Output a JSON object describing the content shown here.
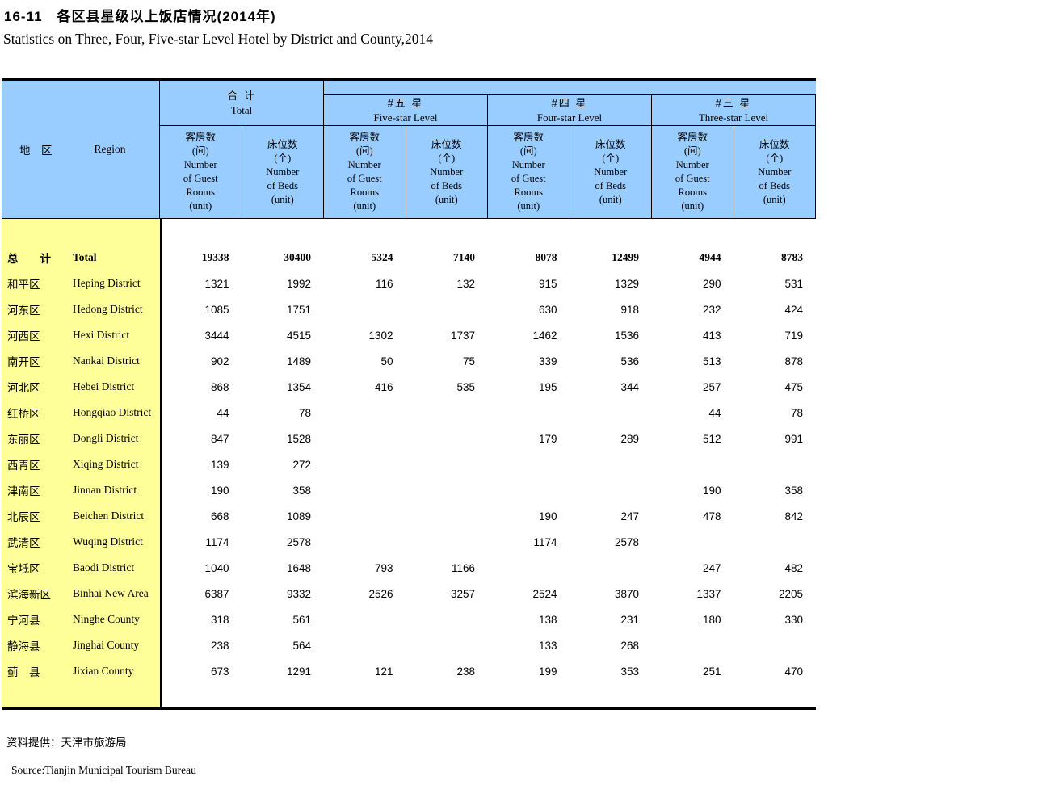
{
  "title": {
    "cn": "16-11　各区县星级以上饭店情况(2014年)",
    "en": "Statistics on Three, Four, Five-star Level Hotel by District and County,2014"
  },
  "header": {
    "region_cn": "地　区",
    "region_en": "Region",
    "groups": [
      {
        "cn": "合 计",
        "en": "Total"
      },
      {
        "cn": "#五 星",
        "en": "Five-star Level"
      },
      {
        "cn": "#四 星",
        "en": "Four-star Level"
      },
      {
        "cn": "#三 星",
        "en": "Three-star Level"
      }
    ],
    "sub_rooms": "客房数\n(间)\nNumber\nof Guest\nRooms\n(unit)",
    "sub_beds": "床位数\n(个)\nNumber\nof Beds\n(unit)"
  },
  "rows": [
    {
      "cn": "总　　计",
      "en": "Total",
      "bold": true,
      "values": [
        "19338",
        "30400",
        "5324",
        "7140",
        "8078",
        "12499",
        "4944",
        "8783"
      ]
    },
    {
      "cn": "和平区",
      "en": "Heping District",
      "values": [
        "1321",
        "1992",
        "116",
        "132",
        "915",
        "1329",
        "290",
        "531"
      ]
    },
    {
      "cn": "河东区",
      "en": "Hedong District",
      "values": [
        "1085",
        "1751",
        "",
        "",
        "630",
        "918",
        "232",
        "424"
      ]
    },
    {
      "cn": "河西区",
      "en": "Hexi District",
      "values": [
        "3444",
        "4515",
        "1302",
        "1737",
        "1462",
        "1536",
        "413",
        "719"
      ]
    },
    {
      "cn": "南开区",
      "en": "Nankai District",
      "values": [
        "902",
        "1489",
        "50",
        "75",
        "339",
        "536",
        "513",
        "878"
      ]
    },
    {
      "cn": "河北区",
      "en": "Hebei District",
      "values": [
        "868",
        "1354",
        "416",
        "535",
        "195",
        "344",
        "257",
        "475"
      ]
    },
    {
      "cn": "红桥区",
      "en": "Hongqiao District",
      "values": [
        "44",
        "78",
        "",
        "",
        "",
        "",
        "44",
        "78"
      ]
    },
    {
      "cn": "东丽区",
      "en": "Dongli District",
      "values": [
        "847",
        "1528",
        "",
        "",
        "179",
        "289",
        "512",
        "991"
      ]
    },
    {
      "cn": "西青区",
      "en": "Xiqing District",
      "values": [
        "139",
        "272",
        "",
        "",
        "",
        "",
        "",
        ""
      ]
    },
    {
      "cn": "津南区",
      "en": "Jinnan District",
      "values": [
        "190",
        "358",
        "",
        "",
        "",
        "",
        "190",
        "358"
      ]
    },
    {
      "cn": "北辰区",
      "en": "Beichen District",
      "values": [
        "668",
        "1089",
        "",
        "",
        "190",
        "247",
        "478",
        "842"
      ]
    },
    {
      "cn": "武清区",
      "en": "Wuqing District",
      "values": [
        "1174",
        "2578",
        "",
        "",
        "1174",
        "2578",
        "",
        ""
      ]
    },
    {
      "cn": "宝坻区",
      "en": "Baodi District",
      "values": [
        "1040",
        "1648",
        "793",
        "1166",
        "",
        "",
        "247",
        "482"
      ]
    },
    {
      "cn": "滨海新区",
      "en": "Binhai New Area",
      "values": [
        "6387",
        "9332",
        "2526",
        "3257",
        "2524",
        "3870",
        "1337",
        "2205"
      ]
    },
    {
      "cn": "宁河县",
      "en": "Ninghe County",
      "values": [
        "318",
        "561",
        "",
        "",
        "138",
        "231",
        "180",
        "330"
      ]
    },
    {
      "cn": "静海县",
      "en": "Jinghai County",
      "values": [
        "238",
        "564",
        "",
        "",
        "133",
        "268",
        "",
        ""
      ]
    },
    {
      "cn": "蓟　县",
      "en": "Jixian County",
      "values": [
        "673",
        "1291",
        "121",
        "238",
        "199",
        "353",
        "251",
        "470"
      ]
    }
  ],
  "footer": {
    "cn": "资料提供：天津市旅游局",
    "en": "Source:Tianjin Municipal Tourism Bureau"
  },
  "colors": {
    "header_bg": "#99CCFF",
    "region_col_bg": "#FFFF99",
    "border": "#000000"
  }
}
